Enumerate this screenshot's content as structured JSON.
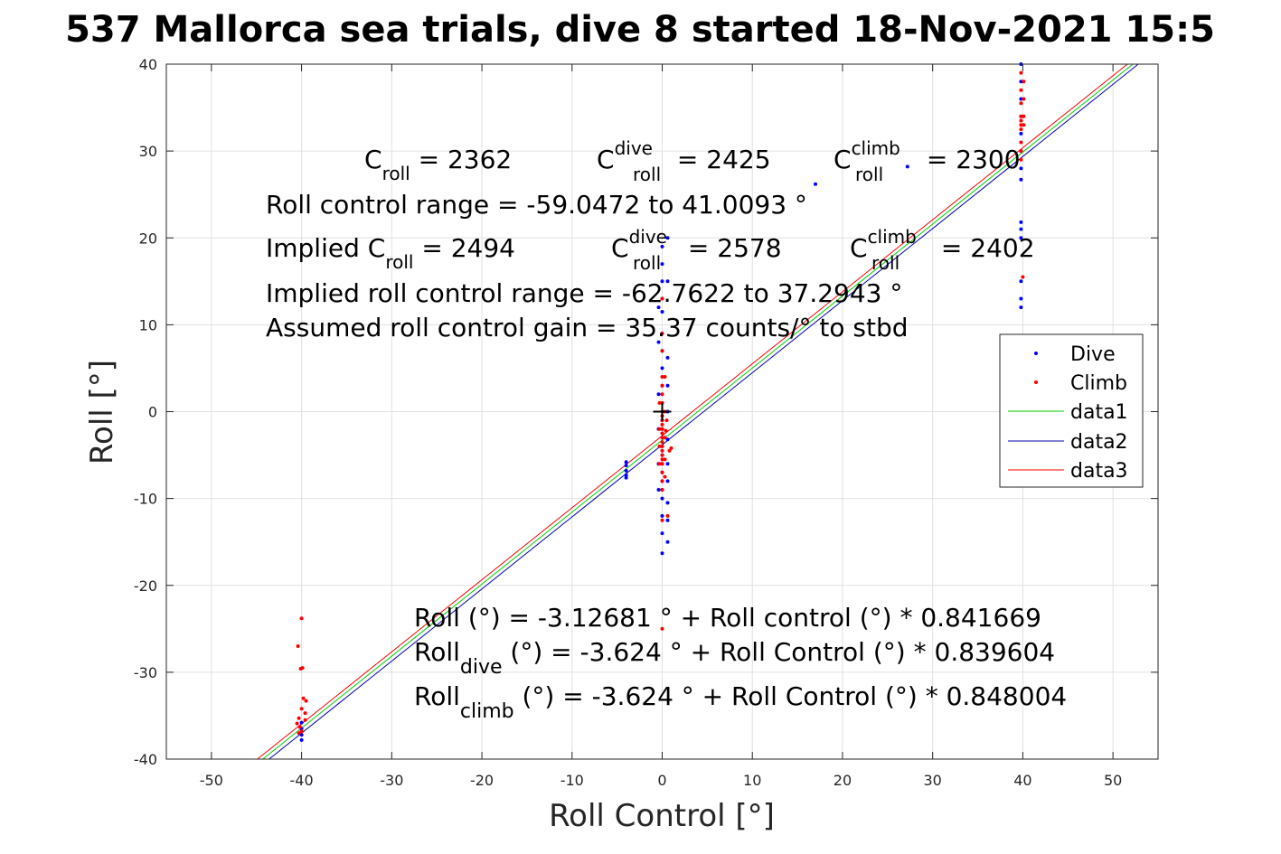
{
  "chart_data": {
    "type": "scatter",
    "title": "537 Mallorca sea trials, dive 8 started 18-Nov-2021 15:5",
    "xlabel": "Roll Control [°]",
    "ylabel": "Roll [°]",
    "xlim": [
      -55,
      55
    ],
    "ylim": [
      -40,
      40
    ],
    "xticks": [
      -50,
      -40,
      -30,
      -20,
      -10,
      0,
      10,
      20,
      30,
      40,
      50
    ],
    "yticks": [
      -40,
      -30,
      -20,
      -10,
      0,
      10,
      20,
      30,
      40
    ],
    "xtick_labels": [
      "-50",
      "-40",
      "-30",
      "-20",
      "-10",
      "0",
      "10",
      "20",
      "30",
      "40",
      "50"
    ],
    "ytick_labels": [
      "-40",
      "-30",
      "-20",
      "-10",
      "0",
      "10",
      "20",
      "30",
      "40"
    ],
    "grid": true,
    "legend_position": "right",
    "legend": [
      "Dive",
      "Climb",
      "data1",
      "data2",
      "data3"
    ],
    "colors": {
      "dive": "#0000ff",
      "climb": "#ff0000",
      "data1": "#00cc00",
      "data2": "#0000aa",
      "data3": "#ff0000"
    },
    "series": [
      {
        "name": "Dive",
        "mode": "markers",
        "color": "#0000ff",
        "points": [
          [
            -40,
            -36.5
          ],
          [
            -40,
            -37.2
          ],
          [
            -40,
            -37.8
          ],
          [
            -40,
            -35.8
          ],
          [
            -4,
            -5.8
          ],
          [
            -4,
            -6.2
          ],
          [
            -4,
            -6.8
          ],
          [
            -4,
            -7.3
          ],
          [
            -4,
            -7.6
          ],
          [
            0,
            19
          ],
          [
            0,
            17
          ],
          [
            0,
            15
          ],
          [
            0,
            13
          ],
          [
            0,
            11.5
          ],
          [
            0,
            9
          ],
          [
            0,
            7
          ],
          [
            0,
            5
          ],
          [
            0,
            3
          ],
          [
            0,
            1
          ],
          [
            0,
            -1
          ],
          [
            0,
            -2
          ],
          [
            0,
            -3
          ],
          [
            0,
            -4
          ],
          [
            0,
            -5
          ],
          [
            0,
            -6
          ],
          [
            0,
            -7
          ],
          [
            0,
            -8
          ],
          [
            0,
            -9
          ],
          [
            0,
            -10
          ],
          [
            0,
            -12
          ],
          [
            0,
            -14
          ],
          [
            0,
            -16.3
          ],
          [
            0.6,
            20
          ],
          [
            0.6,
            15
          ],
          [
            0.6,
            6.2
          ],
          [
            0.6,
            3
          ],
          [
            0.6,
            0
          ],
          [
            0.6,
            -3.2
          ],
          [
            0.6,
            -6
          ],
          [
            0.6,
            -8
          ],
          [
            0.6,
            -10.5
          ],
          [
            0.6,
            -12.5
          ],
          [
            0.6,
            -15
          ],
          [
            -0.4,
            12
          ],
          [
            -0.4,
            8
          ],
          [
            -0.4,
            2
          ],
          [
            -0.4,
            -2
          ],
          [
            -0.4,
            -6
          ],
          [
            -0.4,
            -9
          ],
          [
            17,
            26.2
          ],
          [
            27.2,
            28.2
          ],
          [
            39.8,
            40
          ],
          [
            39.8,
            38
          ],
          [
            39.8,
            36
          ],
          [
            39.8,
            34
          ],
          [
            39.8,
            32
          ],
          [
            39.8,
            30
          ],
          [
            39.8,
            28
          ],
          [
            39.8,
            26.7
          ],
          [
            39.8,
            21.8
          ],
          [
            39.8,
            21
          ],
          [
            39.8,
            20
          ],
          [
            39.8,
            15
          ],
          [
            39.8,
            13
          ],
          [
            39.8,
            12
          ]
        ]
      },
      {
        "name": "Climb",
        "mode": "markers",
        "color": "#ff0000",
        "points": [
          [
            -40,
            -23.8
          ],
          [
            -40.4,
            -27
          ],
          [
            -40.1,
            -29.6
          ],
          [
            -39.9,
            -29.5
          ],
          [
            -39.8,
            -33
          ],
          [
            -39.5,
            -33.3
          ],
          [
            -40,
            -34.2
          ],
          [
            -39.6,
            -34.7
          ],
          [
            -40.3,
            -35.3
          ],
          [
            -40.5,
            -35.9
          ],
          [
            -39.6,
            -35.5
          ],
          [
            -40.2,
            -36.3
          ],
          [
            -40,
            -36.8
          ],
          [
            -40.3,
            -37
          ],
          [
            0,
            13
          ],
          [
            0,
            9
          ],
          [
            0,
            7
          ],
          [
            0,
            4
          ],
          [
            0,
            3
          ],
          [
            0,
            2
          ],
          [
            0,
            1
          ],
          [
            0,
            0
          ],
          [
            0,
            -0.5
          ],
          [
            0,
            -1
          ],
          [
            0,
            -1.5
          ],
          [
            0,
            -2
          ],
          [
            0,
            -2.5
          ],
          [
            0,
            -3
          ],
          [
            0,
            -3.5
          ],
          [
            0,
            -4
          ],
          [
            0,
            -4.5
          ],
          [
            0,
            -5
          ],
          [
            0,
            -5.5
          ],
          [
            0,
            -6
          ],
          [
            0,
            -7
          ],
          [
            0,
            -8
          ],
          [
            0,
            -9
          ],
          [
            0,
            -12.5
          ],
          [
            0,
            -25
          ],
          [
            -0.3,
            1
          ],
          [
            -0.3,
            -2
          ],
          [
            -0.3,
            -4
          ],
          [
            -0.3,
            -6
          ],
          [
            0.3,
            4
          ],
          [
            0.3,
            0
          ],
          [
            0.3,
            -3
          ],
          [
            0.3,
            -5.5
          ],
          [
            0.3,
            -7.5
          ],
          [
            0.5,
            -1
          ],
          [
            0.8,
            -4.5
          ],
          [
            1,
            -4.2
          ],
          [
            0.6,
            -12
          ],
          [
            0.4,
            -2.2
          ],
          [
            39.8,
            39
          ],
          [
            39.8,
            37
          ],
          [
            39.8,
            35.5
          ],
          [
            39.8,
            34
          ],
          [
            39.8,
            33.5
          ],
          [
            39.8,
            33
          ],
          [
            39.8,
            32.5
          ],
          [
            39.8,
            31
          ],
          [
            39.8,
            30
          ],
          [
            39.8,
            29
          ],
          [
            40.1,
            38
          ],
          [
            40.1,
            36
          ],
          [
            40.1,
            34
          ],
          [
            40.1,
            33
          ],
          [
            40,
            15.5
          ]
        ]
      },
      {
        "name": "data1",
        "mode": "line",
        "color": "#00cc00",
        "points": [
          [
            -44.3,
            -40
          ],
          [
            52.2,
            40
          ]
        ]
      },
      {
        "name": "data2",
        "mode": "line",
        "color": "#0000aa",
        "points": [
          [
            -43.6,
            -40
          ],
          [
            52.8,
            40
          ]
        ]
      },
      {
        "name": "data3",
        "mode": "line",
        "color": "#ff0000",
        "points": [
          [
            -44.9,
            -40
          ],
          [
            51.6,
            40
          ]
        ]
      }
    ],
    "origin_marker": [
      0,
      0
    ]
  },
  "annotations": {
    "line1": {
      "c1": "C",
      "c1_sub": "roll",
      "c1_val": " = 2362",
      "c2": "C",
      "c2_sup": "dive",
      "c2_sub": "roll",
      "c2_val": " = 2425",
      "c3": "C",
      "c3_sup": "climb",
      "c3_sub": "roll",
      "c3_val": " = 2300"
    },
    "line2": "Roll control range = -59.0472 to 41.0093 °",
    "line3": {
      "prefix": "Implied C",
      "sub": "roll",
      "val": " = 2494",
      "c2": "C",
      "c2_sup": "dive",
      "c2_sub": "roll",
      "c2_val": " = 2578",
      "c3": "C",
      "c3_sup": "climb",
      "c3_sub": "roll",
      "c3_val": " = 2402"
    },
    "line4": "Implied roll control range = -62.7622 to 37.2943 °",
    "line5": "Assumed roll control gain = 35.37 counts/° to stbd",
    "fit1": "Roll (°) = -3.12681 ° + Roll control (°) * 0.841669",
    "fit2": {
      "prefix": "Roll",
      "sub": "dive",
      "rest": " (°) = -3.624 ° + Roll Control (°) * 0.839604"
    },
    "fit3": {
      "prefix": "Roll",
      "sub": "climb",
      "rest": " (°) = -3.624 ° + Roll Control (°) * 0.848004"
    }
  }
}
